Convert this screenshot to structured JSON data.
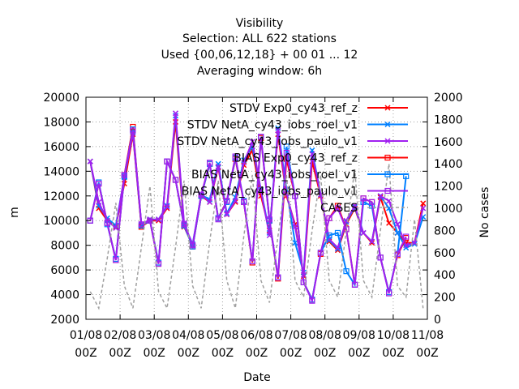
{
  "chart_data": {
    "type": "line",
    "title_lines": [
      "Visibility",
      "Selection: ALL     622 stations",
      "Used {00,06,12,18} + 00 01 ... 12",
      "Averaging window:  6h"
    ],
    "xlabel": "Date",
    "ylabel": "m",
    "y2label": "No cases",
    "ylim": [
      2000,
      20000
    ],
    "y2lim": [
      0,
      2000
    ],
    "xlim": [
      0,
      10
    ],
    "x_ticks": [
      {
        "top": "01/08",
        "bottom": "00Z"
      },
      {
        "top": "02/08",
        "bottom": "00Z"
      },
      {
        "top": "03/08",
        "bottom": "00Z"
      },
      {
        "top": "04/08",
        "bottom": "00Z"
      },
      {
        "top": "05/08",
        "bottom": "00Z"
      },
      {
        "top": "06/08",
        "bottom": "00Z"
      },
      {
        "top": "07/08",
        "bottom": "00Z"
      },
      {
        "top": "08/08",
        "bottom": "00Z"
      },
      {
        "top": "09/08",
        "bottom": "00Z"
      },
      {
        "top": "10/08",
        "bottom": "00Z"
      },
      {
        "top": "11/08",
        "bottom": "00Z"
      }
    ],
    "y_ticks": [
      "2000",
      "4000",
      "6000",
      "8000",
      "10000",
      "12000",
      "14000",
      "16000",
      "18000",
      "20000"
    ],
    "y2_ticks": [
      "0",
      "200",
      "400",
      "600",
      "800",
      "1000",
      "1200",
      "1400",
      "1600",
      "1800",
      "2000"
    ],
    "grid": true,
    "legend_position": "top-right",
    "x": [
      0.125,
      0.375,
      0.625,
      0.875,
      1.125,
      1.375,
      1.625,
      1.875,
      2.125,
      2.375,
      2.625,
      2.875,
      3.125,
      3.375,
      3.625,
      3.875,
      4.125,
      4.375,
      4.625,
      4.875,
      5.125,
      5.375,
      5.625,
      5.875,
      6.125,
      6.375,
      6.625,
      6.875,
      7.125,
      7.375,
      7.625,
      7.875,
      8.125,
      8.375,
      8.625,
      8.875,
      9.125,
      9.375,
      9.625,
      9.875
    ],
    "series": [
      {
        "name": "STDV Exp0_cy43_ref_z",
        "color": "#ff0000",
        "marker": "x",
        "axis": "y1",
        "values": [
          14800,
          11000,
          10000,
          9500,
          13000,
          17000,
          9500,
          10000,
          10000,
          11000,
          18000,
          9500,
          8000,
          12000,
          11500,
          14300,
          10500,
          11500,
          14500,
          15700,
          12000,
          9200,
          17000,
          12000,
          9700,
          5500,
          14800,
          12000,
          8300,
          7600,
          9700,
          11000,
          9000,
          8200,
          11900,
          9800,
          9000,
          8200,
          8200,
          11400
        ]
      },
      {
        "name": "STDV NetA_cy43_iobs_roel_v1",
        "color": "#0080ff",
        "marker": "x",
        "axis": "y1",
        "values": [
          14800,
          11200,
          10200,
          9600,
          13500,
          17200,
          9600,
          10100,
          10100,
          11200,
          18500,
          9700,
          8100,
          12100,
          11700,
          14600,
          10600,
          11900,
          14900,
          16000,
          12500,
          9000,
          17500,
          12500,
          8200,
          5800,
          15700,
          12100,
          8400,
          7700,
          9900,
          11100,
          9000,
          8300,
          12000,
          11000,
          9000,
          7800,
          8100,
          10300
        ]
      },
      {
        "name": "STDV NetA_cy43_iobs_paulo_v1",
        "color": "#a020f0",
        "marker": "x",
        "axis": "y1",
        "values": [
          14800,
          11500,
          10000,
          9400,
          13600,
          17100,
          9700,
          10100,
          10100,
          11100,
          18700,
          9800,
          8000,
          12100,
          11500,
          14400,
          10500,
          11600,
          14700,
          16400,
          12400,
          8800,
          17300,
          12200,
          9500,
          5600,
          15400,
          12100,
          8500,
          7800,
          10000,
          11200,
          9000,
          8300,
          12000,
          11600,
          9700,
          8000,
          8200,
          11000
        ]
      },
      {
        "name": "BIAS Exp0_cy43_ref_z",
        "color": "#ff0000",
        "marker": "square",
        "axis": "y1",
        "values": [
          10000,
          13000,
          9800,
          6800,
          13700,
          17600,
          9500,
          10000,
          6500,
          14800,
          13300,
          9600,
          7900,
          12000,
          14600,
          10200,
          11600,
          15000,
          11500,
          6600,
          16700,
          10000,
          5300,
          15000,
          12000,
          5000,
          3600,
          7300,
          10200,
          11200,
          9300,
          4800,
          11800,
          11500,
          7000,
          4200,
          7200,
          8600,
          null,
          null
        ]
      },
      {
        "name": "BIAS NetA_cy43_iobs_roel_v1",
        "color": "#0080ff",
        "marker": "square",
        "axis": "y1",
        "values": [
          10000,
          13100,
          9700,
          6900,
          13600,
          17400,
          9600,
          10000,
          6600,
          14800,
          13300,
          9600,
          7900,
          12000,
          14600,
          10200,
          11500,
          15100,
          11600,
          6700,
          16800,
          10000,
          5400,
          16000,
          12000,
          5000,
          3600,
          7400,
          8800,
          9000,
          5900,
          4800,
          11500,
          11200,
          7000,
          4200,
          7300,
          13600,
          null,
          null
        ]
      },
      {
        "name": "BIAS NetA_cy43_iobs_paulo_v1",
        "color": "#a020f0",
        "marker": "square",
        "axis": "y1",
        "values": [
          10000,
          13000,
          9800,
          6800,
          13700,
          17300,
          9700,
          10000,
          6500,
          14800,
          13300,
          9700,
          8000,
          12100,
          14700,
          10100,
          11600,
          15200,
          11500,
          6700,
          16800,
          10100,
          5400,
          15500,
          12000,
          5000,
          3500,
          7400,
          10200,
          11000,
          9300,
          4800,
          11800,
          11500,
          7000,
          4100,
          7300,
          8700,
          null,
          null
        ]
      },
      {
        "name": "CASES",
        "color": "#a0a0a0",
        "dashed": true,
        "axis": "y2",
        "values": [
          250,
          100,
          550,
          1050,
          300,
          100,
          650,
          1200,
          250,
          100,
          650,
          1250,
          300,
          100,
          700,
          1250,
          350,
          100,
          750,
          1300,
          350,
          150,
          750,
          1300,
          350,
          200,
          800,
          1300,
          350,
          200,
          800,
          1350,
          350,
          200,
          800,
          1400,
          300,
          200,
          900,
          100
        ]
      }
    ]
  }
}
